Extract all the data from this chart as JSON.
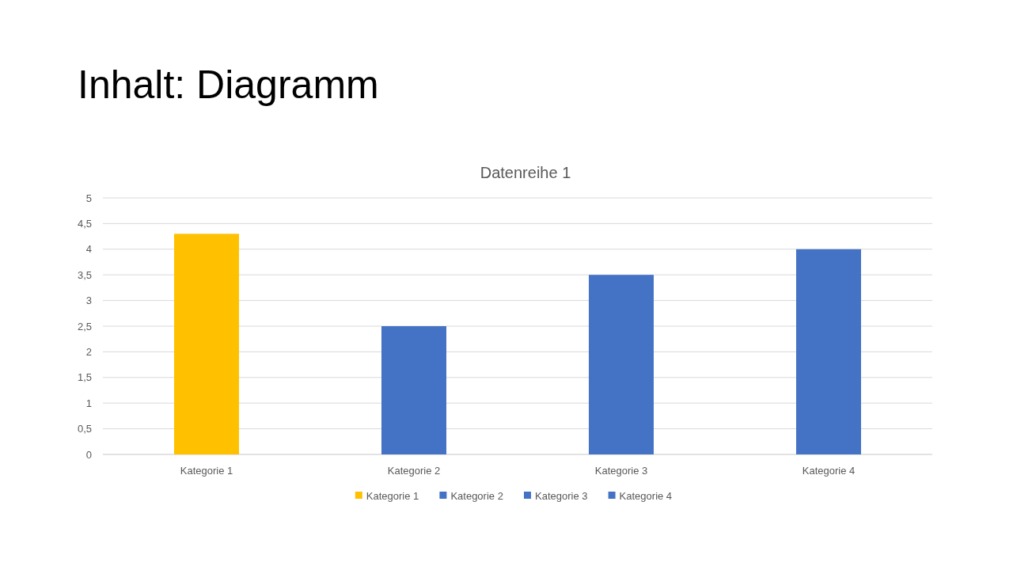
{
  "chart_data": {
    "type": "bar",
    "title": "Inhalt: Diagramm",
    "subtitle": "Datenreihe 1",
    "categories": [
      "Kategorie 1",
      "Kategorie 2",
      "Kategorie 3",
      "Kategorie 4"
    ],
    "stacked": true,
    "series": [
      {
        "name": "Kategorie 1",
        "color": "#ffc000",
        "values": [
          4.3,
          null,
          null,
          null
        ]
      },
      {
        "name": "Kategorie 2",
        "color": "#4472c4",
        "values": [
          null,
          2.5,
          null,
          null
        ]
      },
      {
        "name": "Kategorie 3",
        "color": "#4472c4",
        "values": [
          null,
          null,
          3.5,
          null
        ]
      },
      {
        "name": "Kategorie 4",
        "color": "#4472c4",
        "values": [
          null,
          null,
          null,
          4
        ]
      }
    ],
    "ylim": [
      0,
      5
    ],
    "yticks": [
      0,
      {
        "value": 0.5,
        "label": "0,5"
      },
      1,
      {
        "value": 1.5,
        "label": "1,5"
      },
      2,
      {
        "value": 2.5,
        "label": "2,5"
      },
      3,
      {
        "value": 3.5,
        "label": "3,5"
      },
      4,
      {
        "value": 4.5,
        "label": "4,5"
      },
      5
    ],
    "grid": "y",
    "legend": "bottom"
  }
}
